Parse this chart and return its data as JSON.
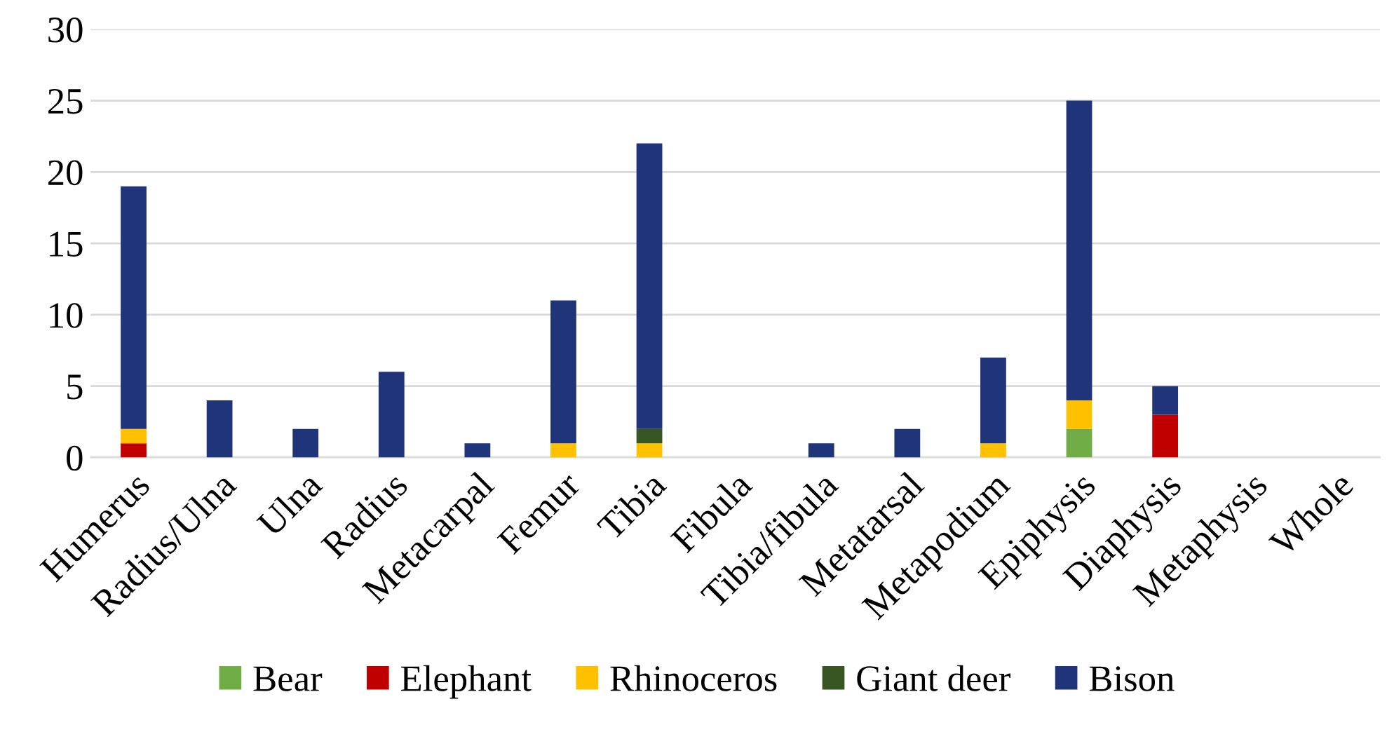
{
  "chart_data": {
    "type": "bar",
    "stacked": true,
    "categories": [
      "Humerus",
      "Radius/Ulna",
      "Ulna",
      "Radius",
      "Metacarpal",
      "Femur",
      "Tibia",
      "Fibula",
      "Tibia/fibula",
      "Metatarsal",
      "Metapodium",
      "Epiphysis",
      "Diaphysis",
      "Metaphysis",
      "Whole"
    ],
    "series": [
      {
        "name": "Bear",
        "color": "#70ad47",
        "values": [
          0,
          0,
          0,
          0,
          0,
          0,
          0,
          0,
          0,
          0,
          0,
          2,
          0,
          0,
          0
        ]
      },
      {
        "name": "Elephant",
        "color": "#c00000",
        "values": [
          1,
          0,
          0,
          0,
          0,
          0,
          0,
          0,
          0,
          0,
          0,
          0,
          3,
          0,
          0
        ]
      },
      {
        "name": "Rhinoceros",
        "color": "#ffc000",
        "values": [
          1,
          0,
          0,
          0,
          0,
          1,
          1,
          0,
          0,
          0,
          1,
          2,
          0,
          0,
          0
        ]
      },
      {
        "name": "Giant deer",
        "color": "#375623",
        "values": [
          0,
          0,
          0,
          0,
          0,
          0,
          1,
          0,
          0,
          0,
          0,
          0,
          0,
          0,
          0
        ]
      },
      {
        "name": "Bison",
        "color": "#203479",
        "values": [
          17,
          4,
          2,
          6,
          1,
          10,
          20,
          0,
          1,
          2,
          6,
          21,
          2,
          0,
          0
        ]
      }
    ],
    "ylim": [
      0,
      30
    ],
    "yticks": [
      0,
      5,
      10,
      15,
      20,
      25,
      30
    ],
    "grid": "y",
    "legend": "bottom"
  }
}
